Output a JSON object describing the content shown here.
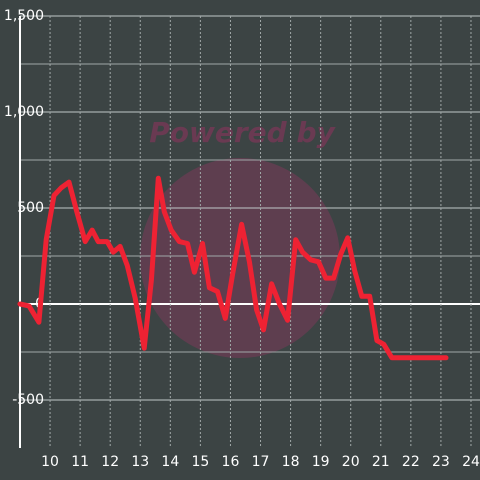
{
  "chart_data": {
    "type": "line",
    "watermark": "Powered by",
    "x": [
      9.0,
      9.3,
      9.63,
      9.87,
      10.13,
      10.37,
      10.63,
      10.9,
      11.17,
      11.4,
      11.6,
      11.9,
      12.1,
      12.33,
      12.57,
      12.83,
      13.13,
      13.37,
      13.6,
      13.8,
      14.03,
      14.3,
      14.57,
      14.8,
      15.07,
      15.3,
      15.57,
      15.83,
      16.07,
      16.37,
      16.63,
      16.87,
      17.1,
      17.37,
      17.63,
      17.9,
      18.17,
      18.4,
      18.67,
      18.93,
      19.17,
      19.43,
      19.67,
      19.9,
      20.13,
      20.37,
      20.63,
      20.87,
      21.1,
      21.37,
      21.63,
      23.17
    ],
    "series": [
      {
        "color": "#ee2233",
        "values": [
          0,
          -10,
          -95,
          335,
          565,
          605,
          635,
          475,
          325,
          385,
          325,
          325,
          270,
          300,
          200,
          30,
          -230,
          125,
          655,
          480,
          385,
          325,
          315,
          165,
          315,
          85,
          65,
          -75,
          155,
          415,
          220,
          -30,
          -135,
          105,
          0,
          -85,
          335,
          270,
          230,
          220,
          135,
          135,
          260,
          345,
          175,
          40,
          40,
          -190,
          -210,
          -280,
          -280,
          -280
        ]
      }
    ],
    "xlim": [
      9,
      24.3
    ],
    "xticks": [
      10,
      11,
      12,
      13,
      14,
      15,
      16,
      17,
      18,
      19,
      20,
      21,
      22,
      23,
      24
    ],
    "ylim": [
      -750,
      1500
    ],
    "yticks": [
      {
        "value": -500,
        "label": "-500"
      },
      0,
      500,
      {
        "value": 1000,
        "label": "1,000"
      },
      {
        "value": 1500,
        "label": "1,500"
      }
    ],
    "minor_yticks": [
      -250,
      250,
      750,
      1250
    ],
    "grid": true
  }
}
